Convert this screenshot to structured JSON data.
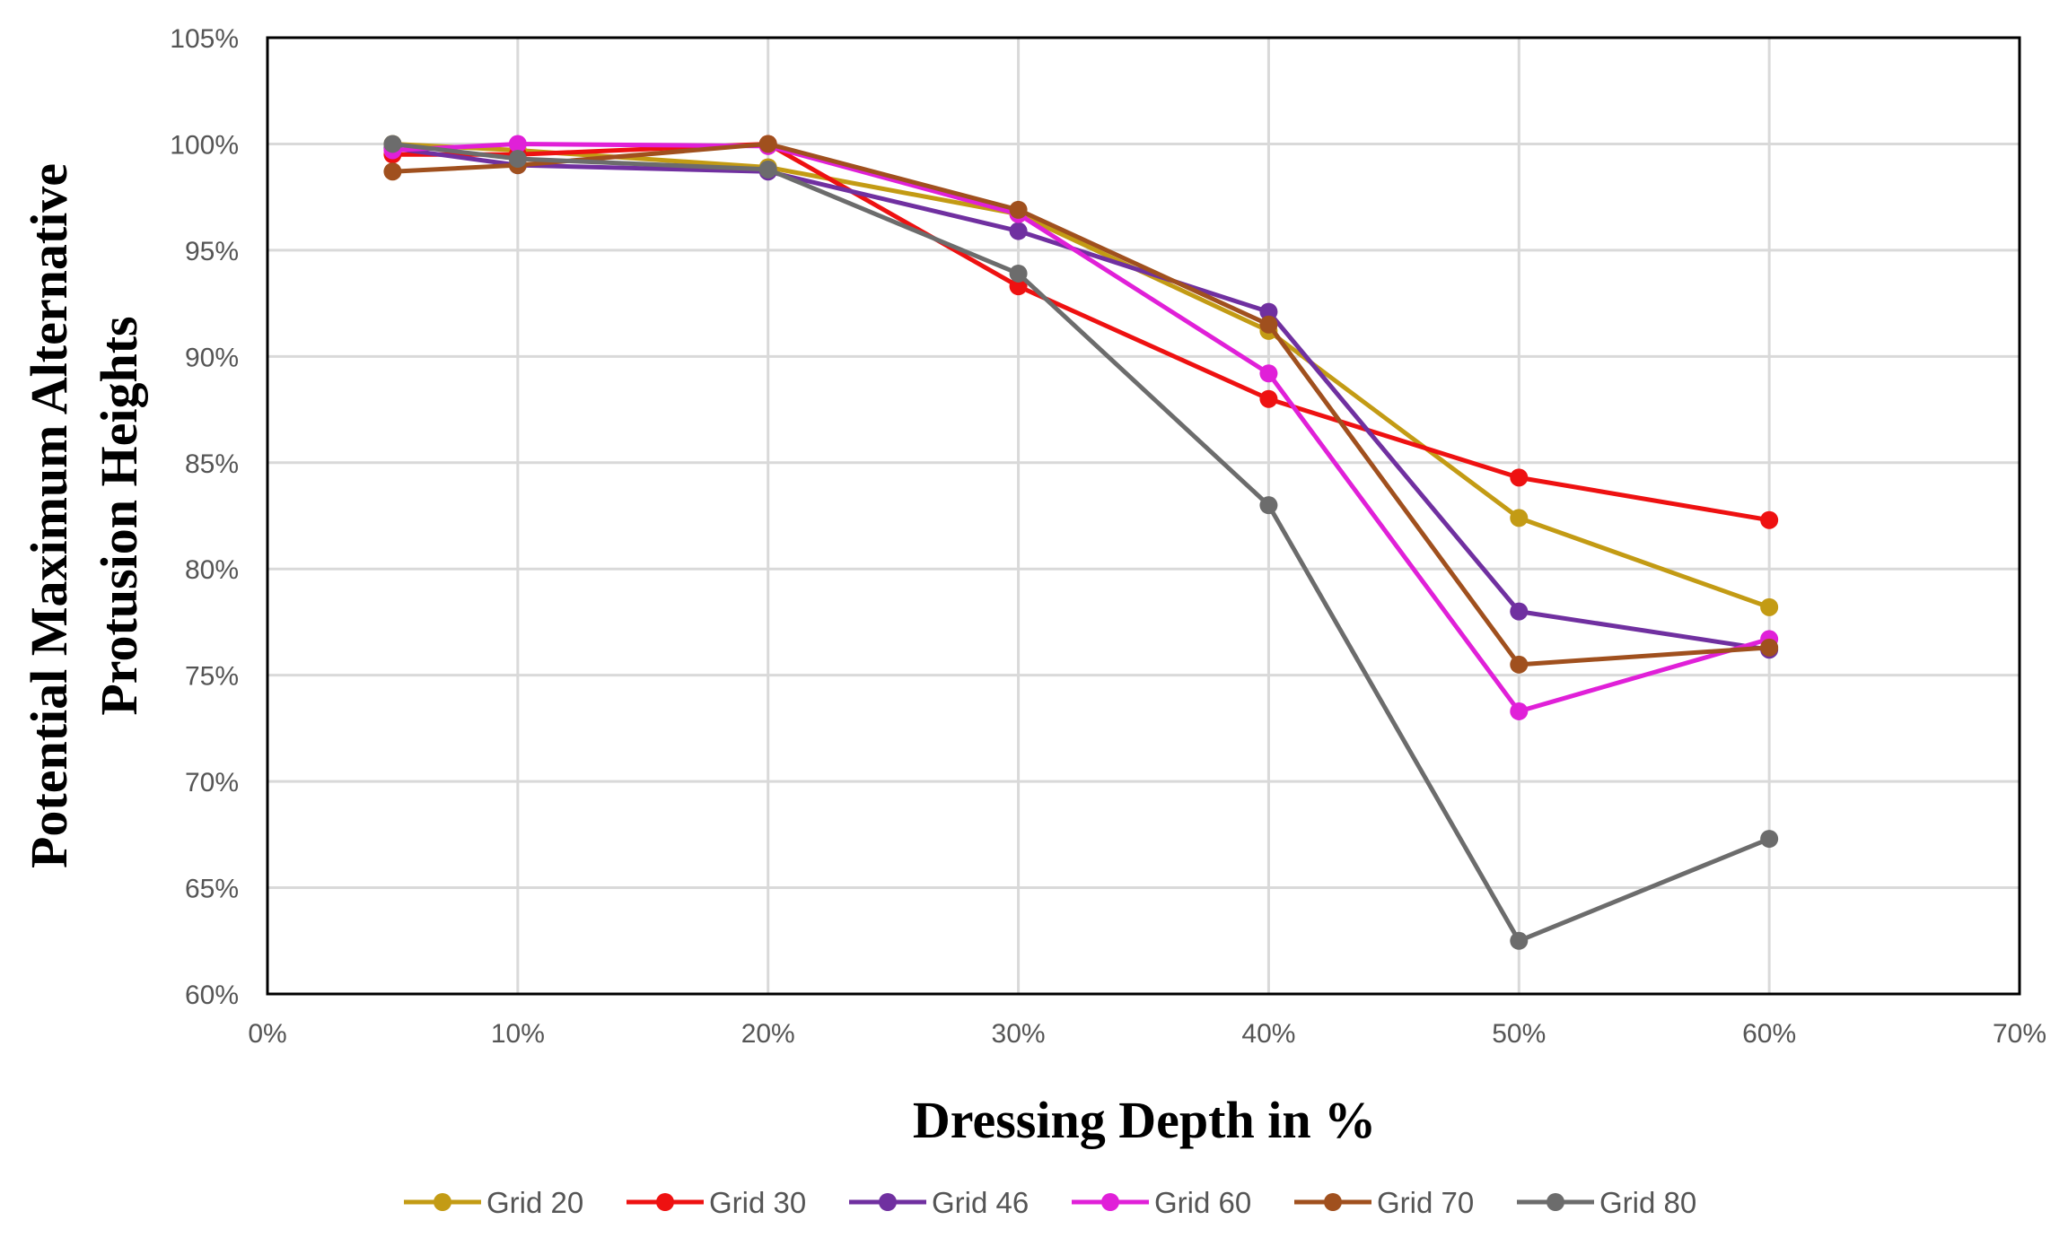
{
  "chart_data": {
    "type": "line",
    "title": "",
    "xlabel": "Dressing Depth in %",
    "ylabel_lines": [
      "Potential Maximum Alternative",
      "Protusion Heights"
    ],
    "xlim": [
      0,
      70
    ],
    "ylim": [
      60,
      105
    ],
    "x_ticks": [
      0,
      10,
      20,
      30,
      40,
      50,
      60,
      70
    ],
    "y_ticks": [
      60,
      65,
      70,
      75,
      80,
      85,
      90,
      95,
      100,
      105
    ],
    "x_tick_labels": [
      "0%",
      "10%",
      "20%",
      "30%",
      "40%",
      "50%",
      "60%",
      "70%"
    ],
    "y_tick_labels": [
      "60%",
      "65%",
      "70%",
      "75%",
      "80%",
      "85%",
      "90%",
      "95%",
      "100%",
      "105%"
    ],
    "grid": true,
    "legend_position": "bottom",
    "x": [
      5,
      10,
      20,
      30,
      40,
      50,
      60
    ],
    "series": [
      {
        "name": "Grid 20",
        "color": "#C39B14",
        "values": [
          100.0,
          99.7,
          98.9,
          96.7,
          91.2,
          82.4,
          78.2
        ]
      },
      {
        "name": "Grid 30",
        "color": "#EE1111",
        "values": [
          99.5,
          99.5,
          100.0,
          93.3,
          88.0,
          84.3,
          82.3
        ]
      },
      {
        "name": "Grid 46",
        "color": "#7030A0",
        "values": [
          99.8,
          99.0,
          98.7,
          95.9,
          92.1,
          78.0,
          76.2
        ]
      },
      {
        "name": "Grid 60",
        "color": "#E020D8",
        "values": [
          99.7,
          100.0,
          99.9,
          96.7,
          89.2,
          73.3,
          76.7
        ]
      },
      {
        "name": "Grid 70",
        "color": "#A0501E",
        "values": [
          98.7,
          99.0,
          100.0,
          96.9,
          91.5,
          75.5,
          76.3
        ]
      },
      {
        "name": "Grid 80",
        "color": "#6C6C6C",
        "values": [
          100.0,
          99.3,
          98.8,
          93.9,
          83.0,
          62.5,
          67.3
        ]
      }
    ]
  }
}
